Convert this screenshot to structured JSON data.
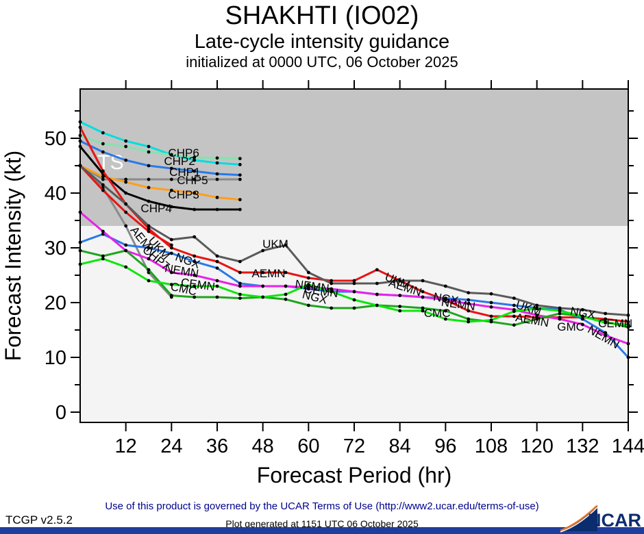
{
  "header": {
    "title": "SHAKHTI (IO02)",
    "subtitle": "Late-cycle intensity guidance",
    "init_line": "initialized at 0000 UTC, 06 October 2025"
  },
  "footer": {
    "version": "TCGP v2.5.2",
    "terms": "Use of this product is governed by the UCAR Terms of Use (http://www2.ucar.edu/terms-of-use)",
    "generated": "Plot generated at 1151 UTC   06 October 2025",
    "logo_text": "NCAR"
  },
  "chart_data": {
    "type": "line",
    "title": "SHAKHTI (IO02) Late-cycle intensity guidance",
    "xlabel": "Forecast Period (hr)",
    "ylabel": "Forecast Intensity (kt)",
    "xlim": [
      0,
      144
    ],
    "ylim": [
      0,
      59
    ],
    "xticks": [
      12,
      24,
      36,
      48,
      60,
      72,
      84,
      96,
      108,
      120,
      132,
      144
    ],
    "yticks": [
      0,
      10,
      20,
      30,
      40,
      50
    ],
    "y_minor_step": 5,
    "grid": false,
    "legend_position": "inline-labels",
    "ts_threshold_kt": 34,
    "ts_region_color": "#c4c4c4",
    "below_ts_color": "#f4f4f4",
    "marker_color": "#000000",
    "ts_label": {
      "text": "TS",
      "hr": 8.0,
      "kt": 45.6,
      "color": "#ffffff",
      "size": 30
    },
    "x_step_hr": 6,
    "series": [
      {
        "name": "CHP2",
        "color": "#00dede",
        "start_hr": 0,
        "values": [
          53,
          51,
          49.5,
          48.5,
          47,
          46,
          45.5,
          45.2
        ]
      },
      {
        "name": "CHP6",
        "color": "#84e3ae",
        "start_hr": 0,
        "values": [
          50.5,
          49,
          48.5,
          47.5,
          47,
          46.5,
          46.4,
          46.3
        ]
      },
      {
        "name": "CHP1",
        "color": "#2979e8",
        "start_hr": 0,
        "values": [
          49.5,
          47.5,
          46,
          45,
          44.5,
          44,
          43.5,
          43.3
        ]
      },
      {
        "name": "CHP5",
        "color": "#8a8a8a",
        "start_hr": 0,
        "values": [
          45,
          42.5,
          42.5,
          42.5,
          42.5,
          42.5,
          42.5,
          42.5
        ]
      },
      {
        "name": "CHP3",
        "color": "#ff9d1e",
        "start_hr": 0,
        "values": [
          45,
          43,
          42,
          41,
          40.5,
          40,
          39.2,
          38.8
        ]
      },
      {
        "name": "CHP4",
        "color": "#000000",
        "start_hr": 0,
        "values": [
          48.5,
          43.5,
          40,
          38.5,
          37.5,
          37,
          37,
          37
        ]
      },
      {
        "name": "CHP7",
        "color": "#8a8a8a",
        "start_hr": 0,
        "values": [
          45,
          41,
          34,
          25.5,
          21
        ]
      },
      {
        "name": "",
        "color": "#e81414",
        "start_hr": 0,
        "values": [
          45,
          40.5,
          36.5,
          33,
          30.5
        ]
      },
      {
        "name": "AEMN",
        "color": "#e81414",
        "start_hr": 0,
        "values": [
          52,
          44,
          38,
          33.5,
          30,
          28.5,
          27.5,
          25.5,
          25.5,
          25.5,
          24.5,
          24,
          24,
          26,
          24,
          22,
          20.5,
          18.5,
          17.5,
          17.5,
          17.3,
          17.3,
          17.3,
          17,
          16.5
        ]
      },
      {
        "name": "UKM",
        "color": "#5a5a5a",
        "start_hr": 0,
        "values": [
          45,
          41.5,
          38,
          34,
          31.5,
          32,
          28.5,
          27.5,
          29.5,
          30.5,
          25.5,
          23.5,
          23.5,
          23.5,
          24,
          24,
          23,
          21.8,
          21.6,
          20.8,
          19.5,
          19,
          18.7,
          18,
          17.7
        ]
      },
      {
        "name": "NGX",
        "color": "#2979e8",
        "start_hr": 0,
        "values": [
          31,
          32.5,
          30.5,
          30,
          29,
          27.5,
          26.3,
          23.5,
          23,
          23,
          22.5,
          22,
          22,
          21.5,
          21.3,
          21,
          20.8,
          20.5,
          20,
          19.5,
          19,
          18.7,
          17,
          14.5,
          10
        ]
      },
      {
        "name": "NEMN",
        "color": "#e822e8",
        "start_hr": 0,
        "values": [
          36.5,
          33,
          29.5,
          28,
          25.5,
          25,
          24,
          23,
          23,
          23,
          22.8,
          22.5,
          22,
          21.5,
          21.3,
          21,
          20.5,
          19.8,
          19.2,
          18.7,
          17.7,
          17,
          16,
          14,
          12.5
        ]
      },
      {
        "name": "CEMN",
        "color": "#1fa51f",
        "start_hr": 0,
        "values": [
          29.5,
          28.5,
          29.5,
          26,
          21.3,
          21,
          21,
          20.8,
          21,
          20.6,
          19.5,
          19,
          19,
          19.5,
          19.3,
          19,
          18.5,
          17,
          16.5,
          15.9,
          17,
          18,
          17.5,
          16.5,
          15.5
        ]
      },
      {
        "name": "CMC",
        "color": "#0ce60c",
        "start_hr": 0,
        "values": [
          27,
          28,
          26.5,
          24,
          23.3,
          23,
          23,
          21.5,
          21,
          21.5,
          23.3,
          22,
          20.5,
          19.5,
          18.5,
          18.5,
          17,
          16.5,
          16.8,
          18.4,
          18.9,
          18.5,
          17.5,
          16.3,
          16
        ]
      }
    ],
    "inline_labels": [
      {
        "text": "CHP6",
        "hr": 27.2,
        "kt": 46.6,
        "rot": 0
      },
      {
        "text": "CHP2",
        "hr": 26.1,
        "kt": 45.1,
        "rot": 0
      },
      {
        "text": "CHP1",
        "hr": 27.5,
        "kt": 43.1,
        "rot": 0
      },
      {
        "text": "CHP5",
        "hr": 29.5,
        "kt": 41.6,
        "rot": 0
      },
      {
        "text": "CHP3",
        "hr": 27.2,
        "kt": 39.0,
        "rot": 0
      },
      {
        "text": "CHP4",
        "hr": 20.0,
        "kt": 36.5,
        "rot": 0
      },
      {
        "text": "AEMN",
        "hr": 15.8,
        "kt": 30.8,
        "rot": 52
      },
      {
        "text": "UKM",
        "hr": 20.0,
        "kt": 29.5,
        "rot": 48
      },
      {
        "text": "CHP7",
        "hr": 19.3,
        "kt": 27.6,
        "rot": 40
      },
      {
        "text": "NGX",
        "hr": 27.9,
        "kt": 27.0,
        "rot": 20
      },
      {
        "text": "NEMN",
        "hr": 26.5,
        "kt": 25.1,
        "rot": 10
      },
      {
        "text": "CEMN",
        "hr": 30.8,
        "kt": 22.6,
        "rot": 8
      },
      {
        "text": "CMC",
        "hr": 27.0,
        "kt": 21.8,
        "rot": 12
      },
      {
        "text": "UKM",
        "hr": 51.3,
        "kt": 30.0,
        "rot": 0
      },
      {
        "text": "AEMN",
        "hr": 49.5,
        "kt": 24.6,
        "rot": 0
      },
      {
        "text": "NEMN",
        "hr": 60.8,
        "kt": 22.3,
        "rot": 8
      },
      {
        "text": "CEMN",
        "hr": 63.2,
        "kt": 21.4,
        "rot": 8
      },
      {
        "text": "NGX",
        "hr": 61.4,
        "kt": 20.3,
        "rot": 14
      },
      {
        "text": "UKM",
        "hr": 83.0,
        "kt": 23.3,
        "rot": 22
      },
      {
        "text": "AEMN",
        "hr": 85.1,
        "kt": 22.1,
        "rot": 18
      },
      {
        "text": "NGX",
        "hr": 95.9,
        "kt": 20.0,
        "rot": 10
      },
      {
        "text": "NEMN",
        "hr": 99.2,
        "kt": 19.0,
        "rot": 8
      },
      {
        "text": "CMC",
        "hr": 93.8,
        "kt": 17.4,
        "rot": 0
      },
      {
        "text": "UKM",
        "hr": 117.5,
        "kt": 18.3,
        "rot": 18
      },
      {
        "text": "AEMN",
        "hr": 118.6,
        "kt": 16.1,
        "rot": 10
      },
      {
        "text": "NGX",
        "hr": 131.9,
        "kt": 17.4,
        "rot": 10
      },
      {
        "text": "CEMN",
        "hr": 140.6,
        "kt": 15.5,
        "rot": 0
      },
      {
        "text": "GMC",
        "hr": 128.9,
        "kt": 14.9,
        "rot": 0
      },
      {
        "text": "NEMN",
        "hr": 137.0,
        "kt": 13.1,
        "rot": 30
      }
    ]
  }
}
